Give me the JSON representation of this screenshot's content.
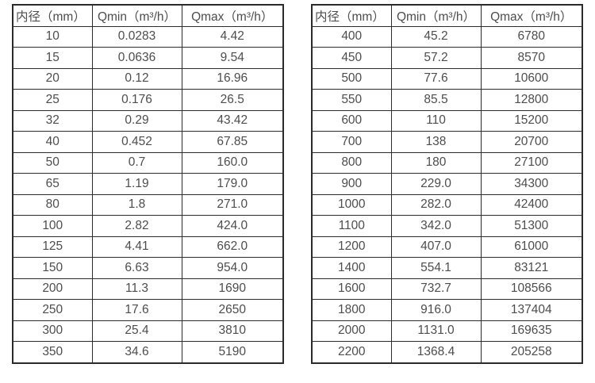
{
  "colors": {
    "background": "#ffffff",
    "border": "#2b2b2b",
    "text": "#4d4d4d"
  },
  "tables": [
    {
      "name": "spec-table-left",
      "headers": [
        "内径（mm）",
        "Qmin（m³/h）",
        "Qmax（m³/h）"
      ],
      "rows": [
        [
          "10",
          "0.0283",
          "4.42"
        ],
        [
          "15",
          "0.0636",
          "9.54"
        ],
        [
          "20",
          "0.12",
          "16.96"
        ],
        [
          "25",
          "0.176",
          "26.5"
        ],
        [
          "32",
          "0.29",
          "43.42"
        ],
        [
          "40",
          "0.452",
          "67.85"
        ],
        [
          "50",
          "0.7",
          "160.0"
        ],
        [
          "65",
          "1.19",
          "179.0"
        ],
        [
          "80",
          "1.8",
          "271.0"
        ],
        [
          "100",
          "2.82",
          "424.0"
        ],
        [
          "125",
          "4.41",
          "662.0"
        ],
        [
          "150",
          "6.63",
          "954.0"
        ],
        [
          "200",
          "11.3",
          "1690"
        ],
        [
          "250",
          "17.6",
          "2650"
        ],
        [
          "300",
          "25.4",
          "3810"
        ],
        [
          "350",
          "34.6",
          "5190"
        ]
      ]
    },
    {
      "name": "spec-table-right",
      "headers": [
        "内径（mm）",
        "Qmin（m³/h）",
        "Qmax（m³/h）"
      ],
      "rows": [
        [
          "400",
          "45.2",
          "6780"
        ],
        [
          "450",
          "57.2",
          "8570"
        ],
        [
          "500",
          "77.6",
          "10600"
        ],
        [
          "550",
          "85.5",
          "12800"
        ],
        [
          "600",
          "110",
          "15200"
        ],
        [
          "700",
          "138",
          "20700"
        ],
        [
          "800",
          "180",
          "27100"
        ],
        [
          "900",
          "229.0",
          "34300"
        ],
        [
          "1000",
          "282.0",
          "42400"
        ],
        [
          "1100",
          "342.0",
          "51300"
        ],
        [
          "1200",
          "407.0",
          "61000"
        ],
        [
          "1400",
          "554.1",
          "83121"
        ],
        [
          "1600",
          "732.7",
          "108566"
        ],
        [
          "1800",
          "916.0",
          "137404"
        ],
        [
          "2000",
          "1131.0",
          "169635"
        ],
        [
          "2200",
          "1368.4",
          "205258"
        ]
      ]
    }
  ]
}
